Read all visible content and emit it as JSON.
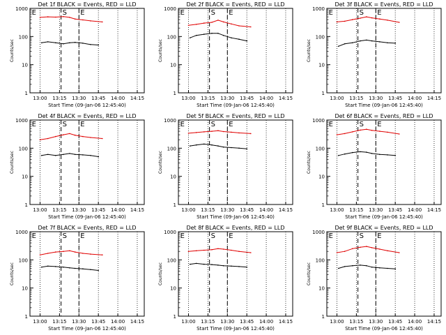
{
  "ylabel": "Counts/sec",
  "xlabel": "Start Time (09-Jan-06 12:45:40)",
  "y_ticks": [
    "1",
    "10",
    "100",
    "1000"
  ],
  "colors": {
    "events": "#000000",
    "lld": "#e00000",
    "axes": "#000000"
  },
  "markers": [
    "E",
    "S",
    "E"
  ],
  "chart_data": [
    {
      "type": "line",
      "title": "Det 1f BLACK = Events, RED = LLD",
      "x_ticks": [
        "13:00",
        "13:15",
        "13:30",
        "13:45",
        "14:00",
        "14:15"
      ],
      "y_scale": "log",
      "ylim": [
        1,
        1000
      ],
      "series": [
        {
          "name": "Events",
          "values": [
            [
              13.02,
              60
            ],
            [
              13.1,
              65
            ],
            [
              13.2,
              60
            ],
            [
              13.3,
              55
            ],
            [
              13.38,
              60
            ],
            [
              13.45,
              62
            ],
            [
              13.55,
              58
            ],
            [
              13.65,
              52
            ],
            [
              13.75,
              50
            ]
          ]
        },
        {
          "name": "LLD",
          "values": [
            [
              13.0,
              480
            ],
            [
              13.1,
              500
            ],
            [
              13.2,
              490
            ],
            [
              13.3,
              510
            ],
            [
              13.38,
              480
            ],
            [
              13.45,
              420
            ],
            [
              13.55,
              390
            ],
            [
              13.65,
              360
            ],
            [
              13.8,
              330
            ]
          ]
        }
      ]
    },
    {
      "type": "line",
      "title": "Det 2f BLACK = Events, RED = LLD",
      "x_ticks": [
        "13:00",
        "13:15",
        "13:30",
        "13:45",
        "14:00",
        "14:15"
      ],
      "y_scale": "log",
      "ylim": [
        1,
        1000
      ],
      "series": [
        {
          "name": "Events",
          "values": [
            [
              13.02,
              90
            ],
            [
              13.1,
              110
            ],
            [
              13.2,
              120
            ],
            [
              13.3,
              130
            ],
            [
              13.38,
              130
            ],
            [
              13.45,
              110
            ],
            [
              13.55,
              90
            ],
            [
              13.65,
              80
            ],
            [
              13.75,
              70
            ]
          ]
        },
        {
          "name": "LLD",
          "values": [
            [
              13.0,
              250
            ],
            [
              13.1,
              270
            ],
            [
              13.2,
              300
            ],
            [
              13.3,
              320
            ],
            [
              13.38,
              380
            ],
            [
              13.45,
              330
            ],
            [
              13.55,
              280
            ],
            [
              13.65,
              240
            ],
            [
              13.8,
              220
            ]
          ]
        }
      ]
    },
    {
      "type": "line",
      "title": "Det 3f BLACK = Events, RED = LLD",
      "x_ticks": [
        "13:00",
        "13:15",
        "13:30",
        "13:45",
        "14:00",
        "14:15"
      ],
      "y_scale": "log",
      "ylim": [
        1,
        1000
      ],
      "series": [
        {
          "name": "Events",
          "values": [
            [
              13.02,
              45
            ],
            [
              13.1,
              55
            ],
            [
              13.2,
              60
            ],
            [
              13.3,
              70
            ],
            [
              13.38,
              75
            ],
            [
              13.45,
              70
            ],
            [
              13.55,
              65
            ],
            [
              13.65,
              60
            ],
            [
              13.75,
              58
            ]
          ]
        },
        {
          "name": "LLD",
          "values": [
            [
              13.0,
              330
            ],
            [
              13.1,
              350
            ],
            [
              13.2,
              400
            ],
            [
              13.3,
              450
            ],
            [
              13.38,
              500
            ],
            [
              13.45,
              460
            ],
            [
              13.55,
              420
            ],
            [
              13.65,
              380
            ],
            [
              13.8,
              320
            ]
          ]
        }
      ]
    },
    {
      "type": "line",
      "title": "Det 4f BLACK = Events, RED = LLD",
      "x_ticks": [
        "13:00",
        "13:15",
        "13:30",
        "13:45",
        "14:00",
        "14:15"
      ],
      "y_scale": "log",
      "ylim": [
        1,
        1000
      ],
      "series": [
        {
          "name": "Events",
          "values": [
            [
              13.02,
              55
            ],
            [
              13.1,
              60
            ],
            [
              13.2,
              55
            ],
            [
              13.3,
              60
            ],
            [
              13.38,
              65
            ],
            [
              13.45,
              60
            ],
            [
              13.55,
              58
            ],
            [
              13.65,
              55
            ],
            [
              13.75,
              50
            ]
          ]
        },
        {
          "name": "LLD",
          "values": [
            [
              13.0,
              200
            ],
            [
              13.1,
              220
            ],
            [
              13.2,
              260
            ],
            [
              13.3,
              300
            ],
            [
              13.38,
              330
            ],
            [
              13.45,
              290
            ],
            [
              13.55,
              260
            ],
            [
              13.65,
              240
            ],
            [
              13.8,
              220
            ]
          ]
        }
      ]
    },
    {
      "type": "line",
      "title": "Det 5f BLACK = Events, RED = LLD",
      "x_ticks": [
        "13:00",
        "13:15",
        "13:30",
        "13:45",
        "14:00",
        "14:15"
      ],
      "y_scale": "log",
      "ylim": [
        1,
        1000
      ],
      "series": [
        {
          "name": "Events",
          "values": [
            [
              13.02,
              120
            ],
            [
              13.1,
              130
            ],
            [
              13.2,
              140
            ],
            [
              13.3,
              130
            ],
            [
              13.38,
              120
            ],
            [
              13.45,
              110
            ],
            [
              13.55,
              105
            ],
            [
              13.65,
              100
            ],
            [
              13.75,
              95
            ]
          ]
        },
        {
          "name": "LLD",
          "values": [
            [
              13.0,
              340
            ],
            [
              13.1,
              360
            ],
            [
              13.2,
              380
            ],
            [
              13.3,
              400
            ],
            [
              13.38,
              420
            ],
            [
              13.45,
              390
            ],
            [
              13.55,
              370
            ],
            [
              13.65,
              350
            ],
            [
              13.8,
              330
            ]
          ]
        }
      ]
    },
    {
      "type": "line",
      "title": "Det 6f BLACK = Events, RED = LLD",
      "x_ticks": [
        "13:00",
        "13:15",
        "13:30",
        "13:45",
        "14:00",
        "14:15"
      ],
      "y_scale": "log",
      "ylim": [
        1,
        1000
      ],
      "series": [
        {
          "name": "Events",
          "values": [
            [
              13.02,
              55
            ],
            [
              13.1,
              62
            ],
            [
              13.2,
              70
            ],
            [
              13.3,
              75
            ],
            [
              13.38,
              72
            ],
            [
              13.45,
              65
            ],
            [
              13.55,
              60
            ],
            [
              13.65,
              58
            ],
            [
              13.75,
              55
            ]
          ]
        },
        {
          "name": "LLD",
          "values": [
            [
              13.0,
              300
            ],
            [
              13.1,
              330
            ],
            [
              13.2,
              380
            ],
            [
              13.3,
              440
            ],
            [
              13.38,
              470
            ],
            [
              13.45,
              430
            ],
            [
              13.55,
              400
            ],
            [
              13.65,
              370
            ],
            [
              13.8,
              320
            ]
          ]
        }
      ]
    },
    {
      "type": "line",
      "title": "Det 7f BLACK = Events, RED = LLD",
      "x_ticks": [
        "13:00",
        "13:15",
        "13:30",
        "13:45",
        "14:00",
        "14:15"
      ],
      "y_scale": "log",
      "ylim": [
        1,
        1000
      ],
      "series": [
        {
          "name": "Events",
          "values": [
            [
              13.02,
              55
            ],
            [
              13.1,
              60
            ],
            [
              13.2,
              58
            ],
            [
              13.3,
              55
            ],
            [
              13.38,
              52
            ],
            [
              13.45,
              50
            ],
            [
              13.55,
              48
            ],
            [
              13.65,
              45
            ],
            [
              13.75,
              42
            ]
          ]
        },
        {
          "name": "LLD",
          "values": [
            [
              13.0,
              150
            ],
            [
              13.1,
              170
            ],
            [
              13.2,
              190
            ],
            [
              13.3,
              200
            ],
            [
              13.38,
              210
            ],
            [
              13.45,
              190
            ],
            [
              13.55,
              170
            ],
            [
              13.65,
              160
            ],
            [
              13.8,
              150
            ]
          ]
        }
      ]
    },
    {
      "type": "line",
      "title": "Det 8f BLACK = Events, RED = LLD",
      "x_ticks": [
        "13:00",
        "13:15",
        "13:30",
        "13:45",
        "14:00",
        "14:15"
      ],
      "y_scale": "log",
      "ylim": [
        1,
        1000
      ],
      "series": [
        {
          "name": "Events",
          "values": [
            [
              13.02,
              70
            ],
            [
              13.1,
              75
            ],
            [
              13.2,
              70
            ],
            [
              13.3,
              68
            ],
            [
              13.38,
              65
            ],
            [
              13.45,
              62
            ],
            [
              13.55,
              60
            ],
            [
              13.65,
              58
            ],
            [
              13.75,
              55
            ]
          ]
        },
        {
          "name": "LLD",
          "values": [
            [
              13.0,
              200
            ],
            [
              13.1,
              210
            ],
            [
              13.2,
              220
            ],
            [
              13.3,
              230
            ],
            [
              13.38,
              250
            ],
            [
              13.45,
              240
            ],
            [
              13.55,
              220
            ],
            [
              13.65,
              200
            ],
            [
              13.8,
              180
            ]
          ]
        }
      ]
    },
    {
      "type": "line",
      "title": "Det 9f BLACK = Events, RED = LLD",
      "x_ticks": [
        "13:00",
        "13:15",
        "13:30",
        "13:45",
        "14:00",
        "14:15"
      ],
      "y_scale": "log",
      "ylim": [
        1,
        1000
      ],
      "series": [
        {
          "name": "Events",
          "values": [
            [
              13.02,
              50
            ],
            [
              13.1,
              58
            ],
            [
              13.2,
              62
            ],
            [
              13.3,
              65
            ],
            [
              13.38,
              62
            ],
            [
              13.45,
              55
            ],
            [
              13.55,
              52
            ],
            [
              13.65,
              50
            ],
            [
              13.75,
              48
            ]
          ]
        },
        {
          "name": "LLD",
          "values": [
            [
              13.0,
              180
            ],
            [
              13.1,
              200
            ],
            [
              13.2,
              250
            ],
            [
              13.3,
              280
            ],
            [
              13.38,
              300
            ],
            [
              13.45,
              270
            ],
            [
              13.55,
              240
            ],
            [
              13.65,
              210
            ],
            [
              13.8,
              180
            ]
          ]
        }
      ]
    }
  ]
}
